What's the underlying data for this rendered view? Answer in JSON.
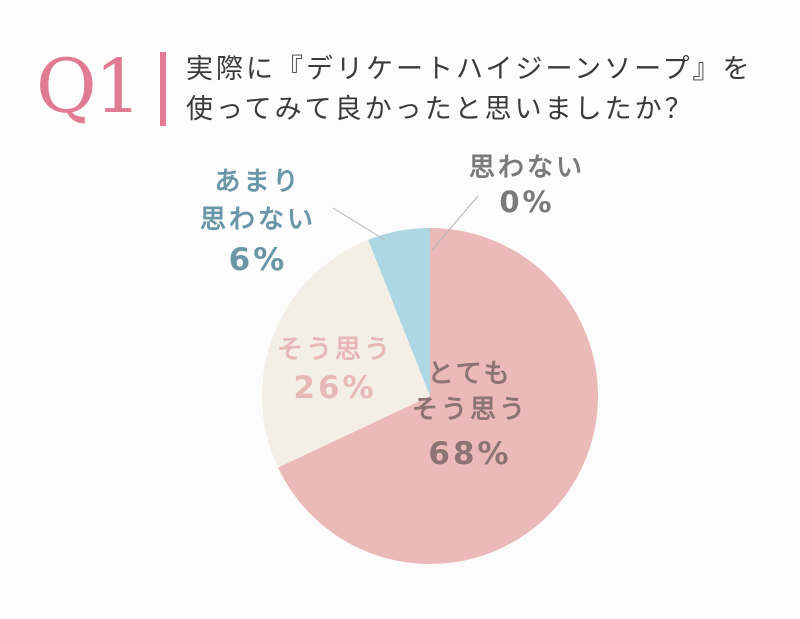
{
  "header": {
    "q_label": "Q1",
    "question_line1": "実際に『デリケートハイジーンソープ』を",
    "question_line2": "使ってみて良かったと思いましたか？"
  },
  "chart_data": {
    "type": "pie",
    "slices": [
      {
        "label_lines": [
          "とても",
          "そう思う"
        ],
        "value": 68,
        "value_label": "68%",
        "color": "#ecb9b9",
        "text_color": "#8d7474"
      },
      {
        "label_lines": [
          "そう思う"
        ],
        "value": 26,
        "value_label": "26%",
        "color": "#f3efe6",
        "text_color": "#e7b8b6"
      },
      {
        "label_lines": [
          "あまり",
          "思わない"
        ],
        "value": 6,
        "value_label": "6%",
        "color": "#add7e2",
        "text_color": "#6a97a8"
      },
      {
        "label_lines": [
          "思わない"
        ],
        "value": 0,
        "value_label": "0%",
        "color": "#ecb9b9",
        "text_color": "#7a7a7a"
      }
    ],
    "start_angle": "top",
    "direction": "clockwise"
  }
}
